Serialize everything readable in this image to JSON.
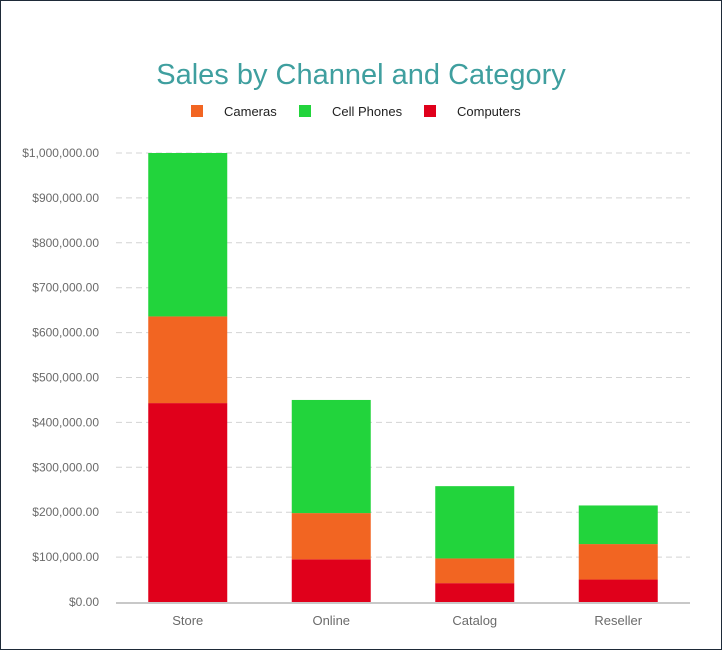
{
  "chart_data": {
    "type": "bar",
    "stacked": true,
    "title": "Sales by Channel and Category",
    "categories": [
      "Store",
      "Online",
      "Catalog",
      "Reseller"
    ],
    "series": [
      {
        "name": "Computers",
        "color": "#e0001b",
        "values": [
          443000,
          95000,
          42000,
          50000
        ]
      },
      {
        "name": "Cameras",
        "color": "#f26522",
        "values": [
          193000,
          103000,
          55000,
          79000
        ]
      },
      {
        "name": "Cell Phones",
        "color": "#22d43c",
        "values": [
          364000,
          252000,
          161000,
          86000
        ]
      }
    ],
    "legend": [
      {
        "name": "Cameras",
        "color": "#f26522"
      },
      {
        "name": "Cell Phones",
        "color": "#22d43c"
      },
      {
        "name": "Computers",
        "color": "#e0001b"
      }
    ],
    "legend_position": "top-center",
    "ylim": [
      0,
      1000000
    ],
    "yticks": [
      "$0.00",
      "$100,000.00",
      "$200,000.00",
      "$300,000.00",
      "$400,000.00",
      "$500,000.00",
      "$600,000.00",
      "$700,000.00",
      "$800,000.00",
      "$900,000.00",
      "$1,000,000.00"
    ],
    "ytick_values": [
      0,
      100000,
      200000,
      300000,
      400000,
      500000,
      600000,
      700000,
      800000,
      900000,
      1000000
    ],
    "grid": "horizontal-dashed"
  }
}
